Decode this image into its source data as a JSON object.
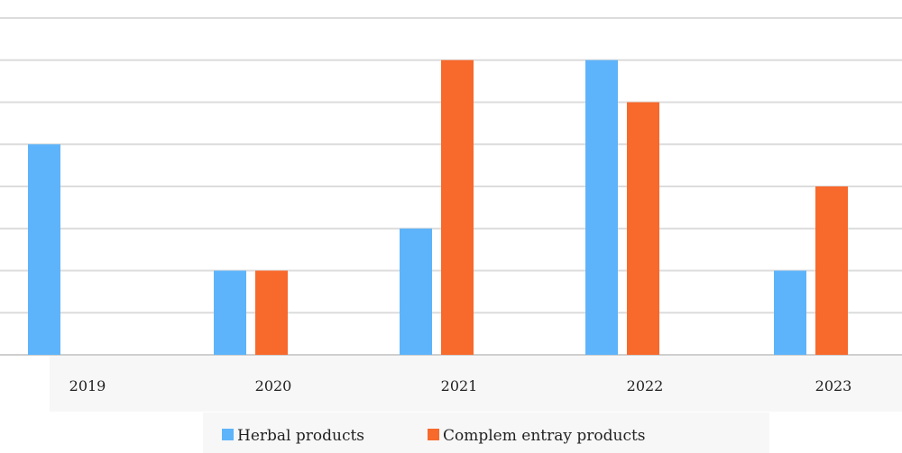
{
  "chart_data": {
    "type": "bar",
    "categories": [
      "2019",
      "2020",
      "2021",
      "2022",
      "2023"
    ],
    "series": [
      {
        "name": "Herbal products",
        "values": [
          5,
          2,
          3,
          7,
          2
        ],
        "color": "#5EB4FA"
      },
      {
        "name": "Complem entray products",
        "values": [
          0,
          2,
          7,
          6,
          4
        ],
        "color": "#F8692C"
      }
    ],
    "ylim": [
      0,
      8
    ],
    "grid": true,
    "legend_position": "bottom"
  }
}
